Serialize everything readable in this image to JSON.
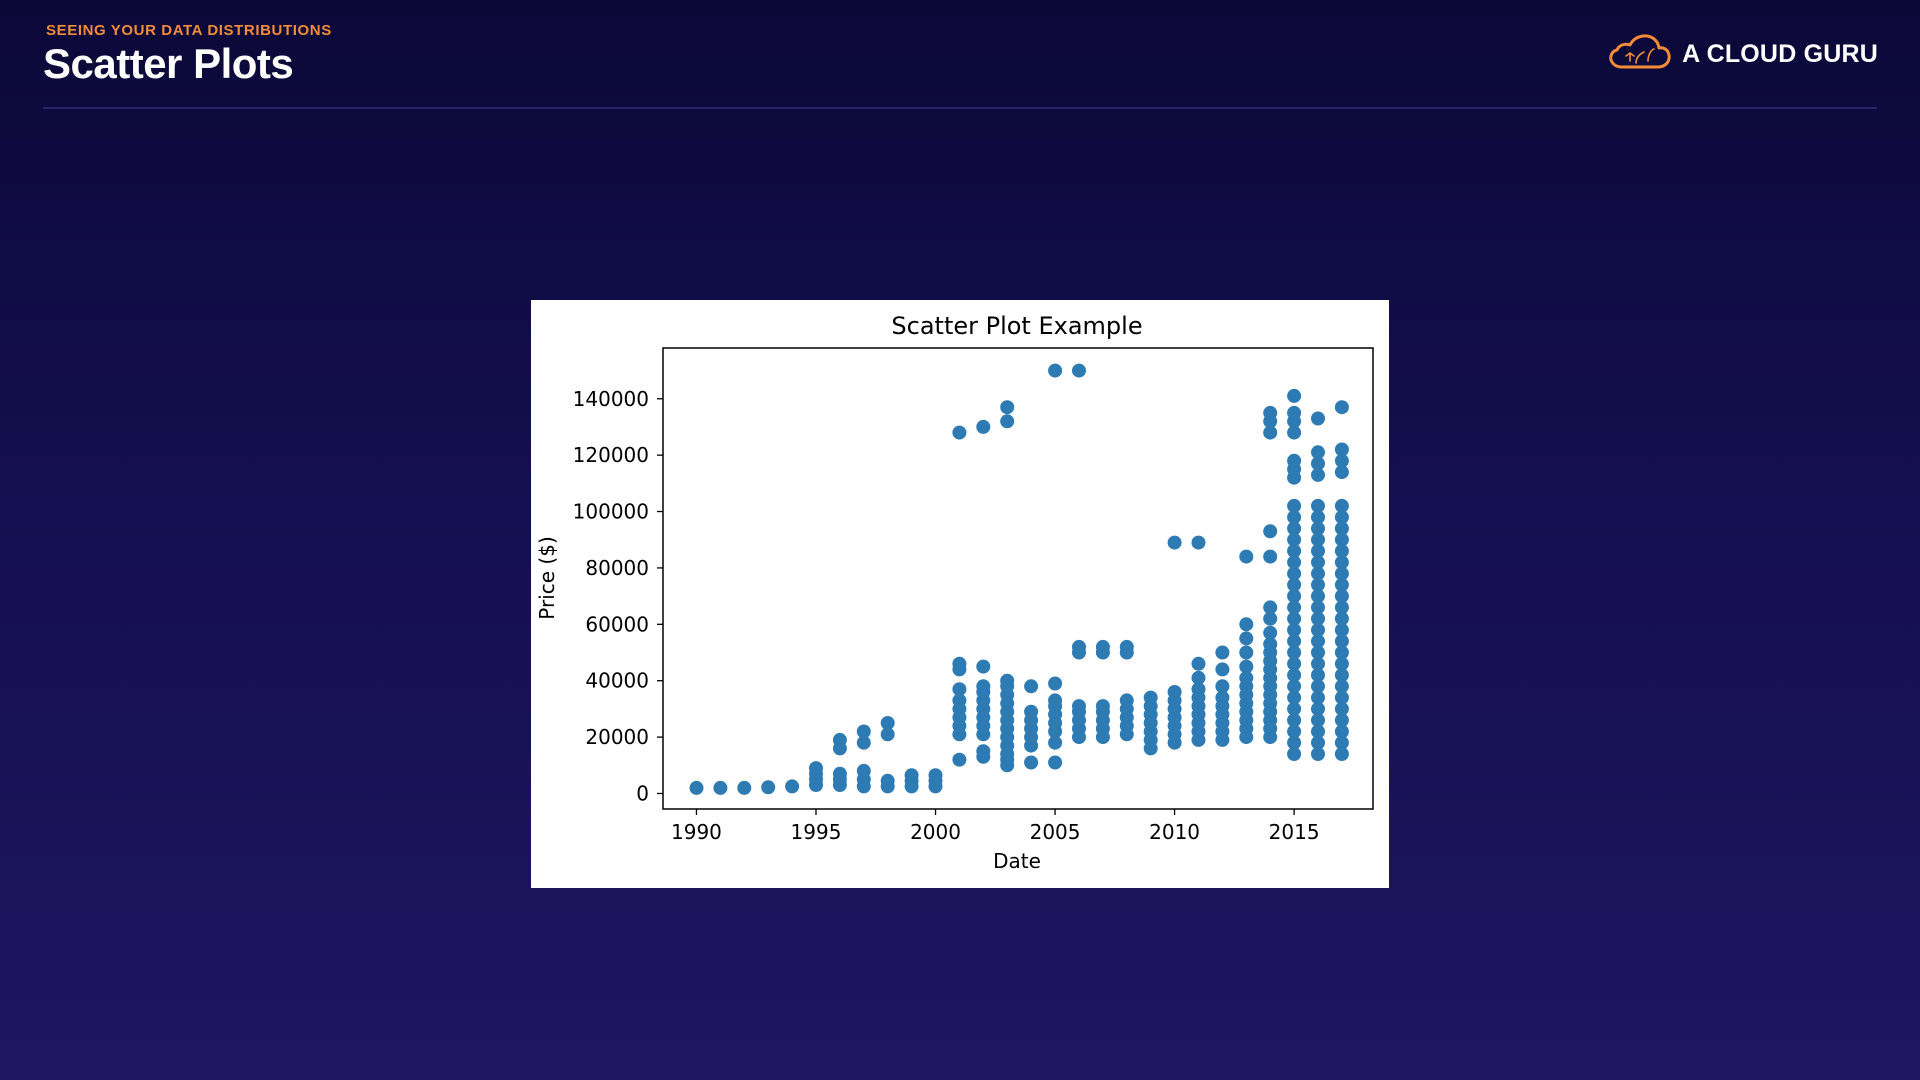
{
  "header": {
    "eyebrow": "SEEING YOUR DATA DISTRIBUTIONS",
    "title": "Scatter Plots"
  },
  "brand": {
    "name": "A CLOUD GURU",
    "icon": "cloud-logo-icon",
    "accent_color": "#f28c38"
  },
  "chart_data": {
    "type": "scatter",
    "title": "Scatter Plot Example",
    "xlabel": "Date",
    "ylabel": "Price ($)",
    "xlim": [
      1988.6,
      2018.3
    ],
    "ylim": [
      -5500,
      158000
    ],
    "x_ticks": [
      1990,
      1995,
      2000,
      2005,
      2010,
      2015
    ],
    "y_ticks": [
      0,
      20000,
      40000,
      60000,
      80000,
      100000,
      120000,
      140000
    ],
    "grid": false,
    "marker_color": "#2e7bb4",
    "series": [
      {
        "points": [
          [
            1990,
            2000
          ],
          [
            1991,
            2000
          ],
          [
            1992,
            2000
          ],
          [
            1993,
            2200
          ],
          [
            1994,
            2500
          ],
          [
            1995,
            3000
          ],
          [
            1995,
            5000
          ],
          [
            1995,
            7000
          ],
          [
            1995,
            9000
          ],
          [
            1996,
            3000
          ],
          [
            1996,
            5000
          ],
          [
            1996,
            7000
          ],
          [
            1996,
            16000
          ],
          [
            1996,
            19000
          ],
          [
            1997,
            2500
          ],
          [
            1997,
            5000
          ],
          [
            1997,
            8000
          ],
          [
            1997,
            18000
          ],
          [
            1997,
            22000
          ],
          [
            1998,
            2500
          ],
          [
            1998,
            4500
          ],
          [
            1998,
            21000
          ],
          [
            1998,
            25000
          ],
          [
            1999,
            2500
          ],
          [
            1999,
            4500
          ],
          [
            1999,
            6500
          ],
          [
            2000,
            2500
          ],
          [
            2000,
            4500
          ],
          [
            2000,
            6500
          ],
          [
            2001,
            12000
          ],
          [
            2001,
            21000
          ],
          [
            2001,
            24000
          ],
          [
            2001,
            27000
          ],
          [
            2001,
            30000
          ],
          [
            2001,
            33000
          ],
          [
            2001,
            37000
          ],
          [
            2001,
            44000
          ],
          [
            2001,
            46000
          ],
          [
            2001,
            128000
          ],
          [
            2002,
            13000
          ],
          [
            2002,
            15000
          ],
          [
            2002,
            21000
          ],
          [
            2002,
            24000
          ],
          [
            2002,
            27000
          ],
          [
            2002,
            30000
          ],
          [
            2002,
            33000
          ],
          [
            2002,
            36000
          ],
          [
            2002,
            38000
          ],
          [
            2002,
            45000
          ],
          [
            2002,
            130000
          ],
          [
            2003,
            10000
          ],
          [
            2003,
            12000
          ],
          [
            2003,
            14000
          ],
          [
            2003,
            17000
          ],
          [
            2003,
            20000
          ],
          [
            2003,
            23000
          ],
          [
            2003,
            26000
          ],
          [
            2003,
            29000
          ],
          [
            2003,
            32000
          ],
          [
            2003,
            35000
          ],
          [
            2003,
            38000
          ],
          [
            2003,
            40000
          ],
          [
            2003,
            132000
          ],
          [
            2003,
            137000
          ],
          [
            2004,
            11000
          ],
          [
            2004,
            17000
          ],
          [
            2004,
            20000
          ],
          [
            2004,
            23000
          ],
          [
            2004,
            26000
          ],
          [
            2004,
            29000
          ],
          [
            2004,
            38000
          ],
          [
            2005,
            11000
          ],
          [
            2005,
            18000
          ],
          [
            2005,
            22000
          ],
          [
            2005,
            25000
          ],
          [
            2005,
            28000
          ],
          [
            2005,
            31000
          ],
          [
            2005,
            33000
          ],
          [
            2005,
            39000
          ],
          [
            2005,
            150000
          ],
          [
            2006,
            20000
          ],
          [
            2006,
            23000
          ],
          [
            2006,
            26000
          ],
          [
            2006,
            29000
          ],
          [
            2006,
            31000
          ],
          [
            2006,
            50000
          ],
          [
            2006,
            52000
          ],
          [
            2006,
            150000
          ],
          [
            2007,
            20000
          ],
          [
            2007,
            23000
          ],
          [
            2007,
            26000
          ],
          [
            2007,
            29000
          ],
          [
            2007,
            31000
          ],
          [
            2007,
            50000
          ],
          [
            2007,
            52000
          ],
          [
            2008,
            21000
          ],
          [
            2008,
            24000
          ],
          [
            2008,
            27000
          ],
          [
            2008,
            30000
          ],
          [
            2008,
            33000
          ],
          [
            2008,
            50000
          ],
          [
            2008,
            52000
          ],
          [
            2009,
            16000
          ],
          [
            2009,
            19000
          ],
          [
            2009,
            22000
          ],
          [
            2009,
            25000
          ],
          [
            2009,
            28000
          ],
          [
            2009,
            31000
          ],
          [
            2009,
            34000
          ],
          [
            2010,
            18000
          ],
          [
            2010,
            21000
          ],
          [
            2010,
            24000
          ],
          [
            2010,
            27000
          ],
          [
            2010,
            30000
          ],
          [
            2010,
            33000
          ],
          [
            2010,
            36000
          ],
          [
            2010,
            89000
          ],
          [
            2011,
            19000
          ],
          [
            2011,
            22000
          ],
          [
            2011,
            25000
          ],
          [
            2011,
            28000
          ],
          [
            2011,
            31000
          ],
          [
            2011,
            34000
          ],
          [
            2011,
            37000
          ],
          [
            2011,
            41000
          ],
          [
            2011,
            46000
          ],
          [
            2011,
            89000
          ],
          [
            2012,
            19000
          ],
          [
            2012,
            22000
          ],
          [
            2012,
            25000
          ],
          [
            2012,
            28000
          ],
          [
            2012,
            31000
          ],
          [
            2012,
            34000
          ],
          [
            2012,
            38000
          ],
          [
            2012,
            44000
          ],
          [
            2012,
            50000
          ],
          [
            2013,
            20000
          ],
          [
            2013,
            23000
          ],
          [
            2013,
            26000
          ],
          [
            2013,
            29000
          ],
          [
            2013,
            32000
          ],
          [
            2013,
            35000
          ],
          [
            2013,
            38000
          ],
          [
            2013,
            41000
          ],
          [
            2013,
            45000
          ],
          [
            2013,
            50000
          ],
          [
            2013,
            55000
          ],
          [
            2013,
            60000
          ],
          [
            2013,
            84000
          ],
          [
            2014,
            20000
          ],
          [
            2014,
            23000
          ],
          [
            2014,
            26000
          ],
          [
            2014,
            29000
          ],
          [
            2014,
            32000
          ],
          [
            2014,
            35000
          ],
          [
            2014,
            38000
          ],
          [
            2014,
            41000
          ],
          [
            2014,
            44000
          ],
          [
            2014,
            47000
          ],
          [
            2014,
            50000
          ],
          [
            2014,
            53000
          ],
          [
            2014,
            57000
          ],
          [
            2014,
            62000
          ],
          [
            2014,
            66000
          ],
          [
            2014,
            84000
          ],
          [
            2014,
            93000
          ],
          [
            2014,
            128000
          ],
          [
            2014,
            132000
          ],
          [
            2014,
            135000
          ],
          [
            2015,
            14000
          ],
          [
            2015,
            18000
          ],
          [
            2015,
            22000
          ],
          [
            2015,
            26000
          ],
          [
            2015,
            30000
          ],
          [
            2015,
            34000
          ],
          [
            2015,
            38000
          ],
          [
            2015,
            42000
          ],
          [
            2015,
            46000
          ],
          [
            2015,
            50000
          ],
          [
            2015,
            54000
          ],
          [
            2015,
            58000
          ],
          [
            2015,
            62000
          ],
          [
            2015,
            66000
          ],
          [
            2015,
            70000
          ],
          [
            2015,
            74000
          ],
          [
            2015,
            78000
          ],
          [
            2015,
            82000
          ],
          [
            2015,
            86000
          ],
          [
            2015,
            90000
          ],
          [
            2015,
            94000
          ],
          [
            2015,
            98000
          ],
          [
            2015,
            102000
          ],
          [
            2015,
            112000
          ],
          [
            2015,
            115000
          ],
          [
            2015,
            118000
          ],
          [
            2015,
            128000
          ],
          [
            2015,
            132000
          ],
          [
            2015,
            135000
          ],
          [
            2015,
            141000
          ],
          [
            2016,
            14000
          ],
          [
            2016,
            18000
          ],
          [
            2016,
            22000
          ],
          [
            2016,
            26000
          ],
          [
            2016,
            30000
          ],
          [
            2016,
            34000
          ],
          [
            2016,
            38000
          ],
          [
            2016,
            42000
          ],
          [
            2016,
            46000
          ],
          [
            2016,
            50000
          ],
          [
            2016,
            54000
          ],
          [
            2016,
            58000
          ],
          [
            2016,
            62000
          ],
          [
            2016,
            66000
          ],
          [
            2016,
            70000
          ],
          [
            2016,
            74000
          ],
          [
            2016,
            78000
          ],
          [
            2016,
            82000
          ],
          [
            2016,
            86000
          ],
          [
            2016,
            90000
          ],
          [
            2016,
            94000
          ],
          [
            2016,
            98000
          ],
          [
            2016,
            102000
          ],
          [
            2016,
            113000
          ],
          [
            2016,
            117000
          ],
          [
            2016,
            121000
          ],
          [
            2016,
            133000
          ],
          [
            2017,
            14000
          ],
          [
            2017,
            18000
          ],
          [
            2017,
            22000
          ],
          [
            2017,
            26000
          ],
          [
            2017,
            30000
          ],
          [
            2017,
            34000
          ],
          [
            2017,
            38000
          ],
          [
            2017,
            42000
          ],
          [
            2017,
            46000
          ],
          [
            2017,
            50000
          ],
          [
            2017,
            54000
          ],
          [
            2017,
            58000
          ],
          [
            2017,
            62000
          ],
          [
            2017,
            66000
          ],
          [
            2017,
            70000
          ],
          [
            2017,
            74000
          ],
          [
            2017,
            78000
          ],
          [
            2017,
            82000
          ],
          [
            2017,
            86000
          ],
          [
            2017,
            90000
          ],
          [
            2017,
            94000
          ],
          [
            2017,
            98000
          ],
          [
            2017,
            102000
          ],
          [
            2017,
            114000
          ],
          [
            2017,
            118000
          ],
          [
            2017,
            122000
          ],
          [
            2017,
            137000
          ]
        ]
      }
    ]
  }
}
